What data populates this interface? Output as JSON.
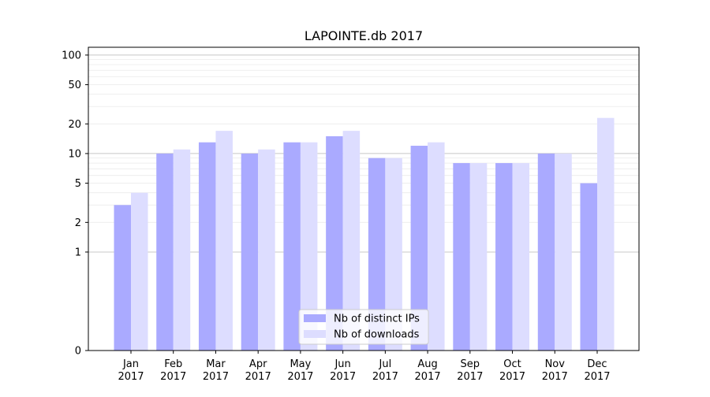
{
  "chart_data": {
    "type": "bar",
    "title": "LAPOINTE.db 2017",
    "xlabel": "",
    "ylabel": "",
    "categories": [
      [
        "Jan",
        "2017"
      ],
      [
        "Feb",
        "2017"
      ],
      [
        "Mar",
        "2017"
      ],
      [
        "Apr",
        "2017"
      ],
      [
        "May",
        "2017"
      ],
      [
        "Jun",
        "2017"
      ],
      [
        "Jul",
        "2017"
      ],
      [
        "Aug",
        "2017"
      ],
      [
        "Sep",
        "2017"
      ],
      [
        "Oct",
        "2017"
      ],
      [
        "Nov",
        "2017"
      ],
      [
        "Dec",
        "2017"
      ]
    ],
    "y_scale": "symlog",
    "ylim": [
      0,
      120
    ],
    "y_ticks": [
      0,
      1,
      2,
      5,
      10,
      20,
      50,
      100
    ],
    "y_tick_labels": [
      "0",
      "1",
      "2",
      "5",
      "10",
      "20",
      "50",
      "100"
    ],
    "grid": true,
    "legend_position": "bottom-center",
    "series": [
      {
        "name": "Nb of distinct IPs",
        "color": "#aaaaff",
        "values": [
          3,
          10,
          13,
          10,
          13,
          15,
          9,
          12,
          8,
          8,
          10,
          5
        ]
      },
      {
        "name": "Nb of downloads",
        "color": "#ddddff",
        "values": [
          4,
          11,
          17,
          11,
          13,
          17,
          9,
          13,
          8,
          8,
          10,
          23
        ]
      }
    ]
  }
}
